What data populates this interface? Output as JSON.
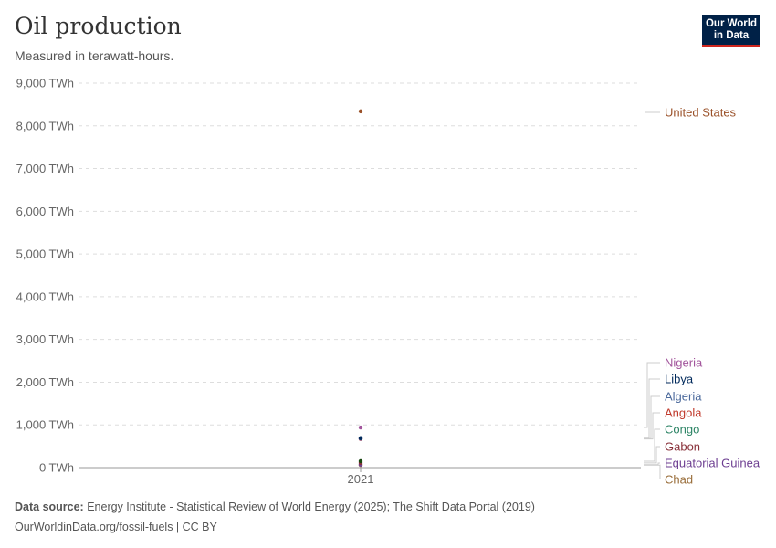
{
  "title": "Oil production",
  "subtitle": "Measured in terawatt-hours.",
  "logo": "Our World in Data",
  "footer": {
    "source_label": "Data source:",
    "source_text": " Energy Institute - Statistical Review of World Energy (2025); The Shift Data Portal (2019)",
    "url": "OurWorldinData.org/fossil-fuels | CC BY"
  },
  "chart_data": {
    "type": "scatter",
    "title": "Oil production",
    "ylabel": "",
    "ylim": [
      0,
      9000
    ],
    "yticks": [
      0,
      1000,
      2000,
      3000,
      4000,
      5000,
      6000,
      7000,
      8000,
      9000
    ],
    "ytick_labels": [
      "0 TWh",
      "1,000 TWh",
      "2,000 TWh",
      "3,000 TWh",
      "4,000 TWh",
      "5,000 TWh",
      "6,000 TWh",
      "7,000 TWh",
      "8,000 TWh",
      "9,000 TWh"
    ],
    "x_label": "2021",
    "grid": true,
    "legend": "right",
    "series": [
      {
        "name": "United States",
        "value": 8340,
        "color": "#9a5129"
      },
      {
        "name": "Nigeria",
        "value": 940,
        "color": "#a2559c"
      },
      {
        "name": "Libya",
        "value": 690,
        "color": "#00295b"
      },
      {
        "name": "Algeria",
        "value": 680,
        "color": "#4c6a9c"
      },
      {
        "name": "Angola",
        "value": 670,
        "color": "#c15065"
      },
      {
        "name": "Congo",
        "value": 150,
        "color": "#18470f"
      },
      {
        "name": "Gabon",
        "value": 110,
        "color": "#883039"
      },
      {
        "name": "Equatorial Guinea",
        "value": 70,
        "color": "#6d3e91"
      },
      {
        "name": "Chad",
        "value": 60,
        "color": "#996d39"
      }
    ],
    "label_colors": {
      "Nigeria": "#a2559c",
      "Libya": "#00295b",
      "Algeria": "#4c6a9c",
      "Angola": "#c0392b",
      "Congo": "#2c8465",
      "Gabon": "#883039",
      "Equatorial Guinea": "#6d3e91",
      "Chad": "#996d39",
      "United States": "#9a5129"
    }
  }
}
